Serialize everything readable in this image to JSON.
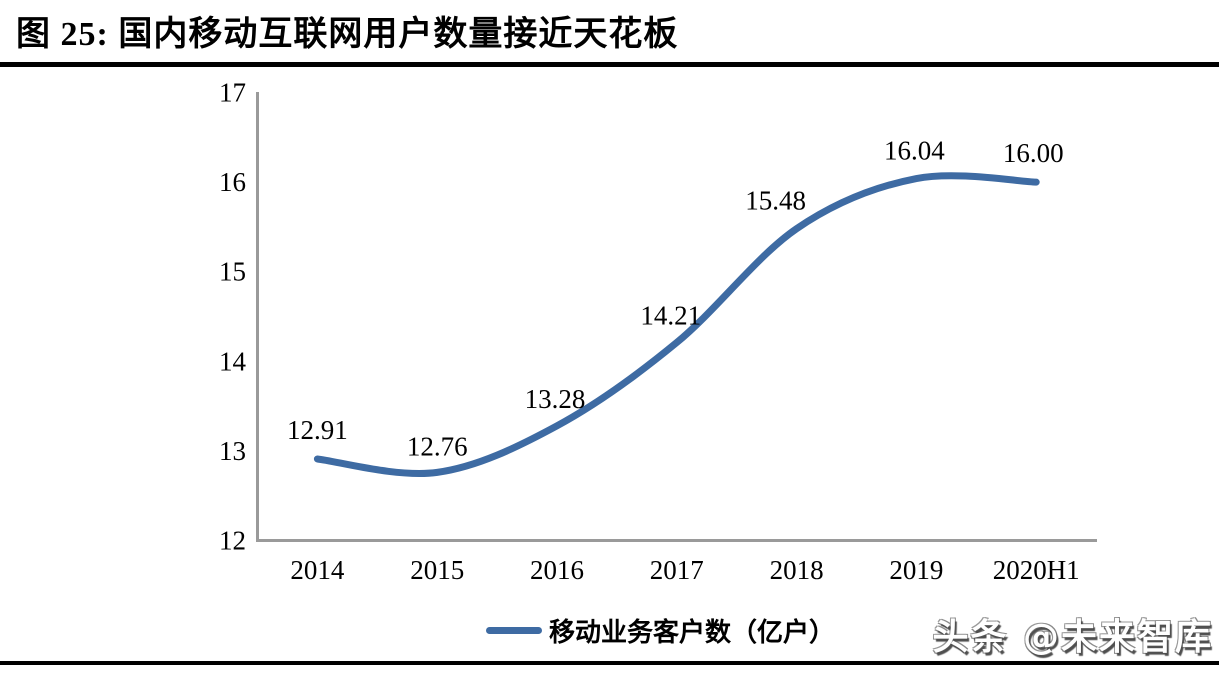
{
  "header": {
    "title": "图 25: 国内移动互联网用户数量接近天花板"
  },
  "chart_data": {
    "type": "line",
    "smooth": true,
    "title": "国内移动互联网用户数量接近天花板",
    "categories": [
      "2014",
      "2015",
      "2016",
      "2017",
      "2018",
      "2019",
      "2020H1"
    ],
    "series": [
      {
        "name": "移动业务客户数（亿户）",
        "values": [
          12.91,
          12.76,
          13.28,
          14.21,
          15.48,
          16.04,
          16.0
        ],
        "color": "#3e6ba3"
      }
    ],
    "data_labels": [
      "12.91",
      "12.76",
      "13.28",
      "14.21",
      "15.48",
      "16.04",
      "16.00"
    ],
    "yticks": [
      "17",
      "16",
      "15",
      "14",
      "13",
      "12"
    ],
    "ytick_values": [
      17,
      16,
      15,
      14,
      13,
      12
    ],
    "ylim": [
      12,
      17
    ],
    "grid": false,
    "legend_position": "bottom",
    "axis_color": "#9a9a9a",
    "text_color": "#000000"
  },
  "legend": {
    "label": "移动业务客户数（亿户）"
  },
  "watermark": {
    "text": "头条 @未来智库"
  }
}
